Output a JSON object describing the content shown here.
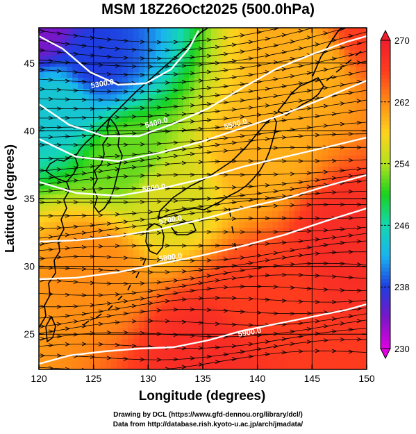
{
  "chart_data": {
    "type": "heatmap",
    "title": "MSM 18Z26Oct2025 (500.0hPa)",
    "xlabel": "Longitude (degrees)",
    "ylabel": "Latitude  (degrees)",
    "xlim": [
      120,
      150
    ],
    "ylim": [
      22.4,
      47.6
    ],
    "x_ticks": [
      "120",
      "125",
      "130",
      "135",
      "140",
      "145",
      "150"
    ],
    "y_ticks": [
      "25",
      "30",
      "35",
      "40",
      "45"
    ],
    "colorbar": {
      "range": [
        230,
        270
      ],
      "ticks": [
        "230",
        "238",
        "246",
        "254",
        "262",
        "270"
      ],
      "colors": [
        "#e000e0",
        "#7a16c8",
        "#1f3de0",
        "#19b4f0",
        "#14d8b0",
        "#19d21e",
        "#b4e21e",
        "#ffd21e",
        "#ff8c14",
        "#ff3c1e",
        "#f01e2d"
      ]
    },
    "contours": {
      "color": "#ffffff",
      "labels": [
        "5300.0",
        "5400.0",
        "5500.0",
        "5600.0",
        "5700.0",
        "5800.0",
        "5900.0"
      ]
    },
    "field_anchors": [
      {
        "lon": 120,
        "lat": 47.6,
        "value": 234
      },
      {
        "lon": 125,
        "lat": 45,
        "value": 238
      },
      {
        "lon": 122,
        "lat": 42,
        "value": 244
      },
      {
        "lon": 128,
        "lat": 38,
        "value": 252
      },
      {
        "lon": 132,
        "lat": 35,
        "value": 256
      },
      {
        "lon": 140,
        "lat": 38,
        "value": 260
      },
      {
        "lon": 145,
        "lat": 45,
        "value": 260
      },
      {
        "lon": 150,
        "lat": 47.6,
        "value": 266
      },
      {
        "lon": 125,
        "lat": 30,
        "value": 262
      },
      {
        "lon": 140,
        "lat": 28,
        "value": 266
      },
      {
        "lon": 148,
        "lat": 32,
        "value": 268
      },
      {
        "lon": 135,
        "lat": 24,
        "value": 268
      }
    ]
  },
  "footer": {
    "line1": "Drawing by DCL (https://www.gfd-dennou.org/library/dcl/)",
    "line2": "Data from http://database.rish.kyoto-u.ac.jp/arch/jmadata/"
  }
}
